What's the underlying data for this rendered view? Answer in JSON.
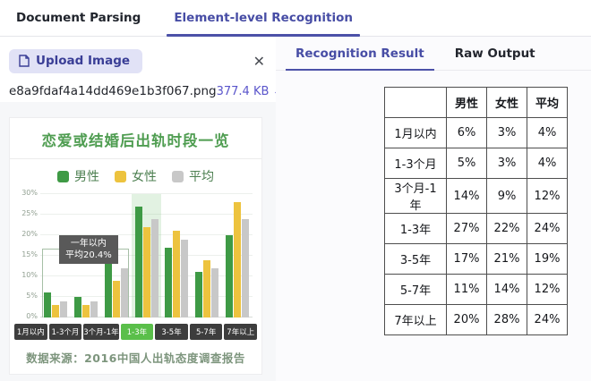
{
  "tabs": {
    "document_parsing": "Document Parsing",
    "element_level": "Element-level Recognition"
  },
  "left_panel": {
    "upload_button": "Upload Image",
    "close_glyph": "✕",
    "file": {
      "name": "e8a9fdaf4a14dd469e1b3f067.png",
      "size": "377.4 KB",
      "arrow": "↓"
    }
  },
  "preview": {
    "title": "恋爱或结婚后出轨时段一览",
    "legend": [
      {
        "label": "男性",
        "color": "#3e9a45"
      },
      {
        "label": "女性",
        "color": "#edc33e"
      },
      {
        "label": "平均",
        "color": "#c8c8c8"
      }
    ],
    "y_ticks": [
      "30%",
      "25%",
      "20%",
      "15%",
      "10%",
      "5%",
      "0%"
    ],
    "annotation": {
      "line1": "一年以内",
      "line2": "平均20.4%"
    },
    "highlighted_category": "1-3年",
    "source": "数据来源：2016中国人出轨态度调查报告"
  },
  "chart_data": {
    "type": "bar",
    "title": "恋爱或结婚后出轨时段一览",
    "categories": [
      "1月以内",
      "1-3个月",
      "3个月-1年",
      "1-3年",
      "3-5年",
      "5-7年",
      "7年以上"
    ],
    "series": [
      {
        "name": "男性",
        "color": "#3e9a45",
        "values": [
          6,
          5,
          14,
          27,
          17,
          11,
          20
        ]
      },
      {
        "name": "女性",
        "color": "#edc33e",
        "values": [
          3,
          3,
          9,
          22,
          21,
          14,
          28
        ]
      },
      {
        "name": "平均",
        "color": "#c8c8c8",
        "values": [
          4,
          4,
          12,
          24,
          19,
          12,
          24
        ]
      }
    ],
    "xlabel": "",
    "ylabel": "",
    "ylim": [
      0,
      30
    ],
    "grid": true,
    "legend_position": "top"
  },
  "right_panel": {
    "tabs": {
      "recognition_result": "Recognition Result",
      "raw_output": "Raw Output"
    },
    "table": {
      "headers": [
        "",
        "男性",
        "女性",
        "平均"
      ],
      "rows": [
        {
          "label": "1月以内",
          "values": [
            "6%",
            "3%",
            "4%"
          ]
        },
        {
          "label": "1-3个月",
          "values": [
            "5%",
            "3%",
            "4%"
          ]
        },
        {
          "label": "3个月-1年",
          "values": [
            "14%",
            "9%",
            "12%"
          ]
        },
        {
          "label": "1-3年",
          "values": [
            "27%",
            "22%",
            "24%"
          ]
        },
        {
          "label": "3-5年",
          "values": [
            "17%",
            "21%",
            "19%"
          ]
        },
        {
          "label": "5-7年",
          "values": [
            "11%",
            "14%",
            "12%"
          ]
        },
        {
          "label": "7年以上",
          "values": [
            "20%",
            "28%",
            "24%"
          ]
        }
      ]
    }
  },
  "colors": {
    "accent": "#474da5",
    "upload_button_bg": "#e1e2f6",
    "file_size_link": "#5a55cb",
    "chart_green": "#3e9a45",
    "chart_yellow": "#edc33e",
    "chart_gray": "#c8c8c8",
    "chart_title_green": "#4f9d51",
    "x_label_active_bg": "#5abf4a",
    "x_label_bg": "#3d3d3d"
  }
}
